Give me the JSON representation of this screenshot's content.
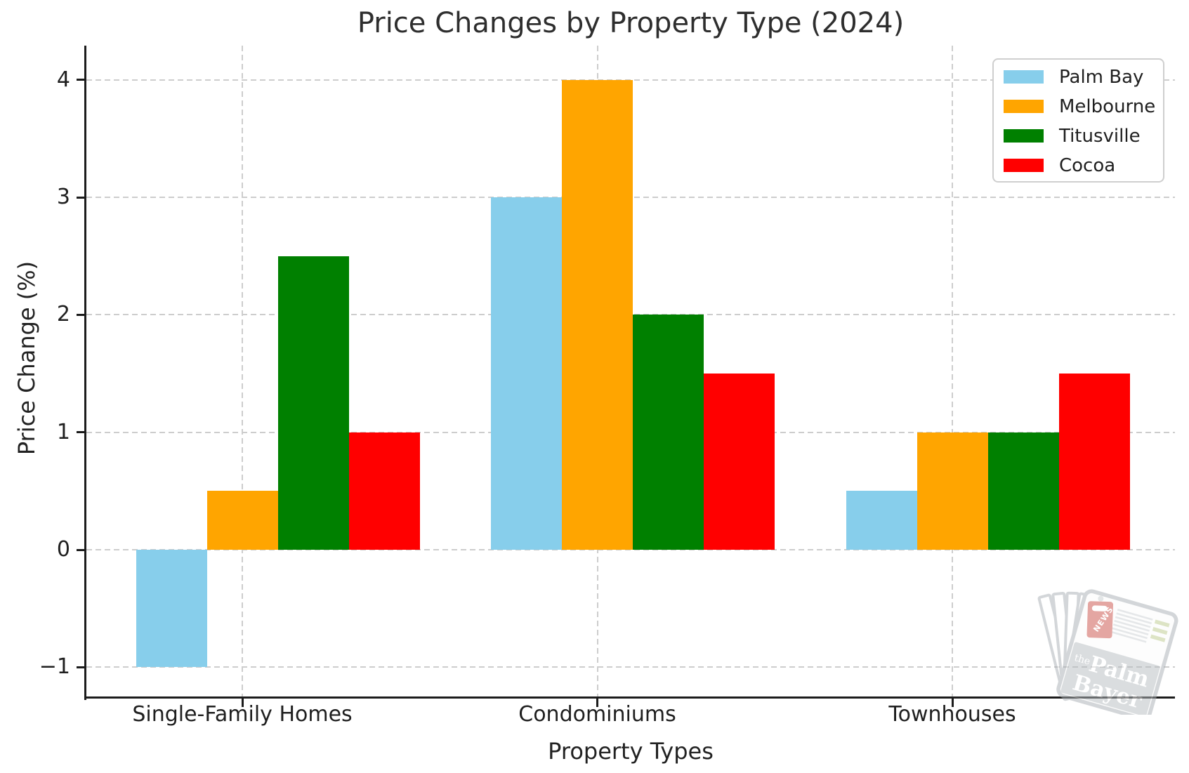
{
  "chart_data": {
    "type": "bar",
    "title": "Price Changes by Property Type (2024)",
    "xlabel": "Property Types",
    "ylabel": "Price Change (%)",
    "categories": [
      "Single-Family Homes",
      "Condominiums",
      "Townhouses"
    ],
    "series": [
      {
        "name": "Palm Bay",
        "color": "#87CEEB",
        "values": [
          -1,
          3,
          0.5
        ]
      },
      {
        "name": "Melbourne",
        "color": "#FFA500",
        "values": [
          0.5,
          4,
          1
        ]
      },
      {
        "name": "Titusville",
        "color": "#008000",
        "values": [
          2.5,
          2,
          1
        ]
      },
      {
        "name": "Cocoa",
        "color": "#FF0000",
        "values": [
          1,
          1.5,
          1.5
        ]
      }
    ],
    "y_ticks": [
      -1,
      0,
      1,
      2,
      3,
      4
    ],
    "ylim": [
      -1.26,
      4.3
    ],
    "grid": true,
    "grid_style": "dashed",
    "legend_position": "upper right",
    "axis_color": "#1c1c1c",
    "grid_color": "#cdcdcd"
  },
  "watermark": {
    "tag": "NEWS",
    "line1": "the",
    "line2": "Palm",
    "line3": "Bayer"
  }
}
